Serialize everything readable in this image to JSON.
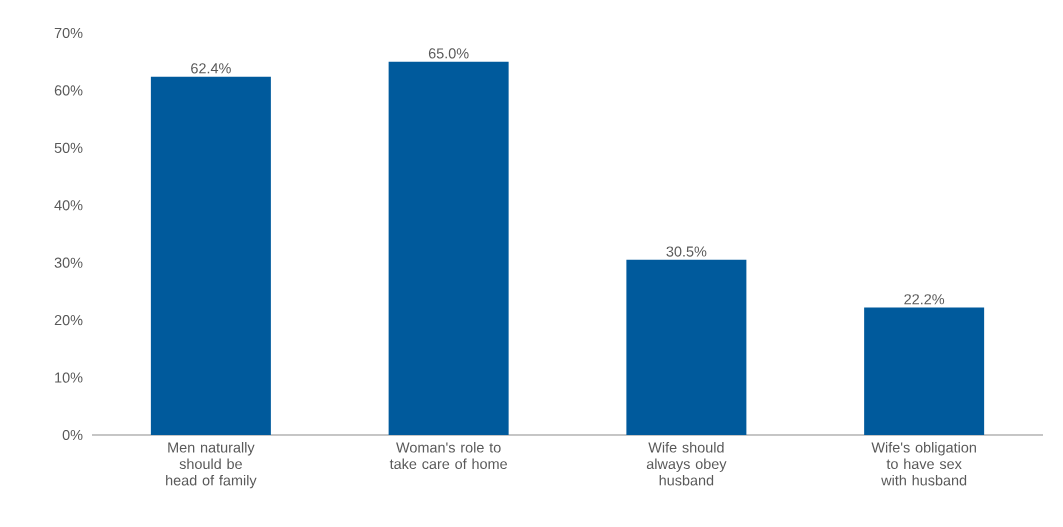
{
  "chart_data": {
    "type": "bar",
    "categories": [
      "Men naturally should be head of family",
      "Woman's role to take care of home",
      "Wife should always obey husband",
      "Wife's obligation to have sex with husband"
    ],
    "values": [
      62.4,
      65.0,
      30.5,
      22.2
    ],
    "value_labels": [
      "62.4%",
      "65.0%",
      "30.5%",
      "22.2%"
    ],
    "color": "#005a9c",
    "ylim": [
      0,
      70
    ],
    "yticks": [
      {
        "value": 0,
        "label": "0%"
      },
      {
        "value": 10,
        "label": "10%"
      },
      {
        "value": 20,
        "label": "20%"
      },
      {
        "value": 30,
        "label": "30%"
      },
      {
        "value": 40,
        "label": "40%"
      },
      {
        "value": 50,
        "label": "50%"
      },
      {
        "value": 60,
        "label": "60%"
      },
      {
        "value": 70,
        "label": "70%"
      }
    ],
    "grid": false
  }
}
